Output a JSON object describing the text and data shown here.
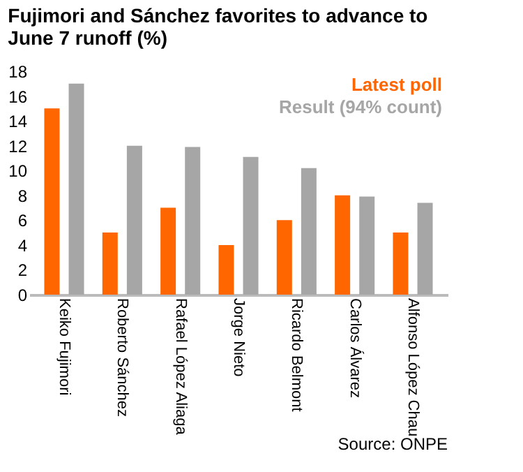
{
  "chart_data": {
    "type": "bar",
    "title": [
      "Fujimori and Sánchez favorites to advance to",
      "June 7 runoff (%)"
    ],
    "categories": [
      "Keiko Fujimori",
      "Roberto Sánchez",
      "Rafael López Aliaga",
      "Jorge Nieto",
      "Ricardo Belmont",
      "Carlos Álvarez",
      "Alfonso López Chau"
    ],
    "series": [
      {
        "name": "Latest poll",
        "color": "#ff6600",
        "values": [
          15,
          5,
          7,
          4,
          6,
          8,
          5
        ]
      },
      {
        "name": "Result (94% count)",
        "color": "#a6a6a6",
        "values": [
          17,
          12,
          11.9,
          11.1,
          10.2,
          7.9,
          7.4
        ]
      }
    ],
    "ylim": [
      0,
      18
    ],
    "yticks": [
      0,
      2,
      4,
      6,
      8,
      10,
      12,
      14,
      16,
      18
    ],
    "grid": false,
    "legend": "top right",
    "annotations": [
      "Source: ONPE"
    ]
  }
}
